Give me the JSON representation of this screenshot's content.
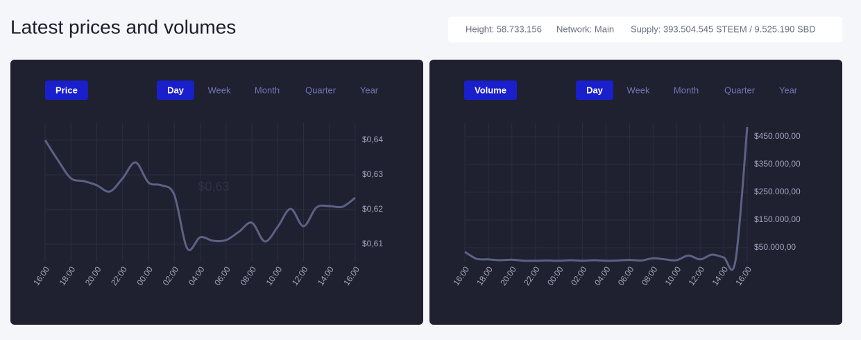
{
  "header": {
    "title": "Latest prices and volumes",
    "stats": [
      "Height: 58.733.156",
      "Network: Main",
      "Supply: 393.504.545 STEEM / 9.525.190 SBD"
    ]
  },
  "chart_data": [
    {
      "type": "line",
      "label": "Price",
      "ranges": [
        "Day",
        "Week",
        "Month",
        "Quarter",
        "Year"
      ],
      "annotation": "$0,63",
      "color": "#5d6185",
      "grid": true,
      "x": [
        0,
        1,
        2,
        3,
        4,
        5,
        6,
        7,
        8,
        9,
        10,
        11,
        12,
        13,
        14,
        15,
        16,
        17,
        18,
        19,
        20,
        21,
        22,
        23,
        24
      ],
      "values": [
        0.64,
        0.6342,
        0.629,
        0.6282,
        0.627,
        0.6252,
        0.629,
        0.6336,
        0.6278,
        0.627,
        0.6242,
        0.6088,
        0.612,
        0.611,
        0.6112,
        0.6136,
        0.6162,
        0.6108,
        0.615,
        0.6202,
        0.6152,
        0.6206,
        0.621,
        0.6208,
        0.6234
      ],
      "xlim": [
        0,
        24
      ],
      "xticks": [
        {
          "value": 0,
          "label": "16:00"
        },
        {
          "value": 2,
          "label": "18:00"
        },
        {
          "value": 4,
          "label": "20:00"
        },
        {
          "value": 6,
          "label": "22:00"
        },
        {
          "value": 8,
          "label": "00:00"
        },
        {
          "value": 10,
          "label": "02:00"
        },
        {
          "value": 12,
          "label": "04:00"
        },
        {
          "value": 14,
          "label": "06:00"
        },
        {
          "value": 16,
          "label": "08:00"
        },
        {
          "value": 18,
          "label": "10:00"
        },
        {
          "value": 20,
          "label": "12:00"
        },
        {
          "value": 22,
          "label": "14:00"
        },
        {
          "value": 24,
          "label": "16:00"
        }
      ],
      "ylim": [
        0.605,
        0.645
      ],
      "yticks": [
        {
          "value": 0.61,
          "label": "$0,61"
        },
        {
          "value": 0.62,
          "label": "$0,62"
        },
        {
          "value": 0.63,
          "label": "$0,63"
        },
        {
          "value": 0.64,
          "label": "$0,64"
        }
      ]
    },
    {
      "type": "line",
      "label": "Volume",
      "ranges": [
        "Day",
        "Week",
        "Month",
        "Quarter",
        "Year"
      ],
      "color": "#5d6185",
      "grid": true,
      "x": [
        0,
        1,
        2,
        3,
        4,
        5,
        6,
        7,
        8,
        9,
        10,
        11,
        12,
        13,
        14,
        15,
        16,
        17,
        18,
        19,
        20,
        21,
        22,
        23,
        24
      ],
      "values": [
        35000,
        10000,
        8000,
        5000,
        7000,
        3000,
        3000,
        4000,
        3000,
        5000,
        3000,
        5000,
        3000,
        4000,
        6000,
        4000,
        12000,
        8000,
        5000,
        22000,
        8000,
        25000,
        15000,
        3000,
        485000
      ],
      "xlim": [
        0,
        24
      ],
      "xticks": [
        {
          "value": 0,
          "label": "16:00"
        },
        {
          "value": 2,
          "label": "18:00"
        },
        {
          "value": 4,
          "label": "20:00"
        },
        {
          "value": 6,
          "label": "22:00"
        },
        {
          "value": 8,
          "label": "00:00"
        },
        {
          "value": 10,
          "label": "02:00"
        },
        {
          "value": 12,
          "label": "04:00"
        },
        {
          "value": 14,
          "label": "06:00"
        },
        {
          "value": 16,
          "label": "08:00"
        },
        {
          "value": 18,
          "label": "10:00"
        },
        {
          "value": 20,
          "label": "12:00"
        },
        {
          "value": 22,
          "label": "14:00"
        },
        {
          "value": 24,
          "label": "16:00"
        }
      ],
      "ylim": [
        0,
        500000
      ],
      "yticks": [
        {
          "value": 50000,
          "label": "$50.000,00"
        },
        {
          "value": 150000,
          "label": "$150.000,00"
        },
        {
          "value": 250000,
          "label": "$250.000,00"
        },
        {
          "value": 350000,
          "label": "$350.000,00"
        },
        {
          "value": 450000,
          "label": "$450.000,00"
        }
      ]
    }
  ]
}
